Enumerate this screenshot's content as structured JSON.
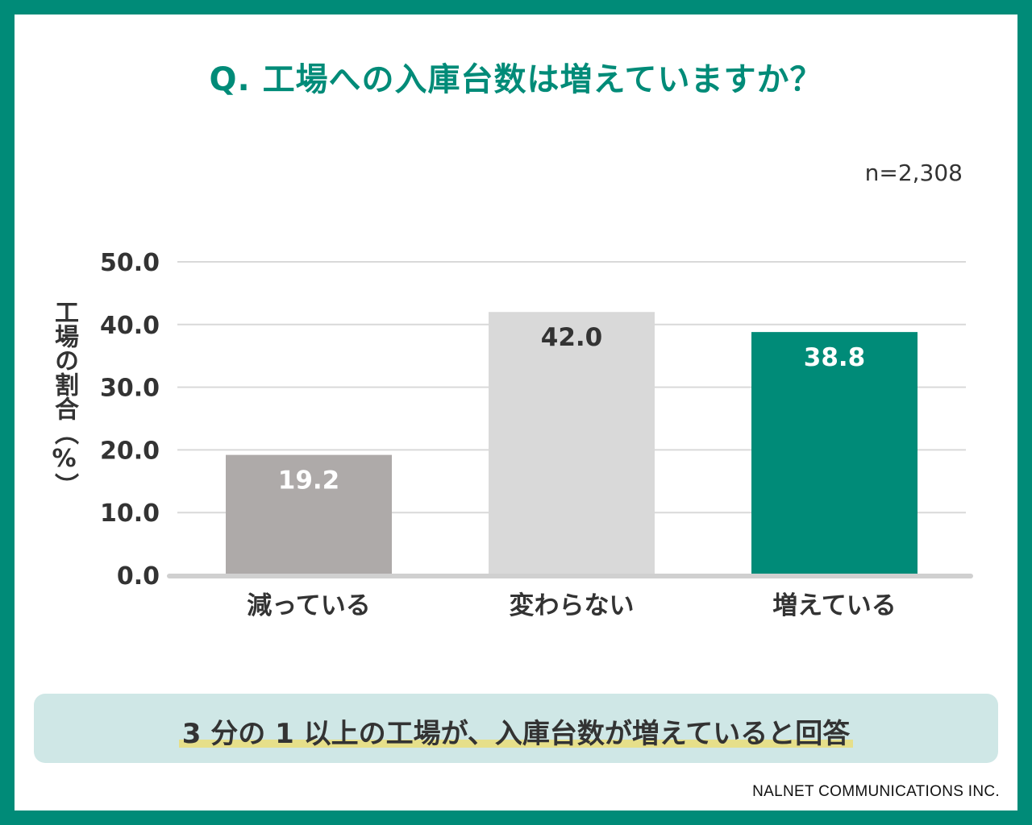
{
  "header": {
    "title": "Q. 工場への入庫台数は増えていますか？",
    "sample_size": "n=2,308"
  },
  "chart_data": {
    "type": "bar",
    "categories": [
      "減っている",
      "変わらない",
      "増えている"
    ],
    "values": [
      19.2,
      42.0,
      38.8
    ],
    "value_labels": [
      "19.2",
      "42.0",
      "38.8"
    ],
    "title": "Q. 工場への入庫台数は増えていますか？",
    "xlabel": "",
    "ylabel": "工場の割合（%）",
    "ylim": [
      0,
      50
    ],
    "yticks": [
      0,
      10,
      20,
      30,
      40,
      50
    ],
    "ytick_labels": [
      "0.0",
      "10.0",
      "20.0",
      "30.0",
      "40.0",
      "50.0"
    ],
    "grid": true,
    "legend": "none",
    "bar_colors": [
      "#aeaaa9",
      "#d9d9d9",
      "#008b78"
    ],
    "label_colors": [
      "#ffffff",
      "#333333",
      "#ffffff"
    ]
  },
  "summary": {
    "text": "3 分の 1 以上の工場が、入庫台数が増えていると回答"
  },
  "footer": {
    "credit": "NALNET COMMUNICATIONS INC."
  },
  "colors": {
    "accent": "#008b78",
    "summary_bg": "#cfe7e6",
    "highlight": "#e6df8a"
  }
}
